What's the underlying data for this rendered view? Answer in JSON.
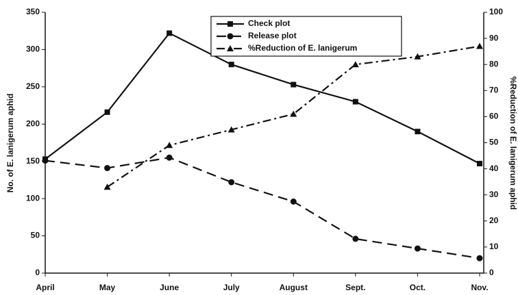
{
  "chart_data": {
    "type": "line",
    "categories": [
      "April",
      "May",
      "June",
      "July",
      "August",
      "Sept.",
      "Oct.",
      "Nov."
    ],
    "ylabel": "No. of E. lanigerum aphid",
    "y2label": "%Reduction of E. lanigerum aphid",
    "ylim": [
      0,
      350
    ],
    "yticks": [
      0,
      50,
      100,
      150,
      200,
      250,
      300,
      350
    ],
    "y2lim": [
      0,
      100
    ],
    "y2ticks": [
      0,
      10,
      20,
      30,
      40,
      50,
      60,
      70,
      80,
      90,
      100
    ],
    "legend": "upper center",
    "series": [
      {
        "name": "Check plot",
        "color": "#111111",
        "style": "solid",
        "marker": "square",
        "values": [
          153,
          216,
          322,
          280,
          253,
          230,
          190,
          147
        ]
      },
      {
        "name": "Release plot",
        "color": "#111111",
        "style": "dashed",
        "marker": "circle",
        "values": [
          151,
          141,
          155,
          122,
          96,
          46,
          33,
          20
        ]
      },
      {
        "name": "%Reduction of E. lanigerum",
        "color": "#111111",
        "style": "dashdot",
        "marker": "triangle",
        "axis": "y2",
        "values": [
          null,
          33,
          49,
          55,
          61,
          80,
          83,
          87
        ]
      }
    ]
  }
}
